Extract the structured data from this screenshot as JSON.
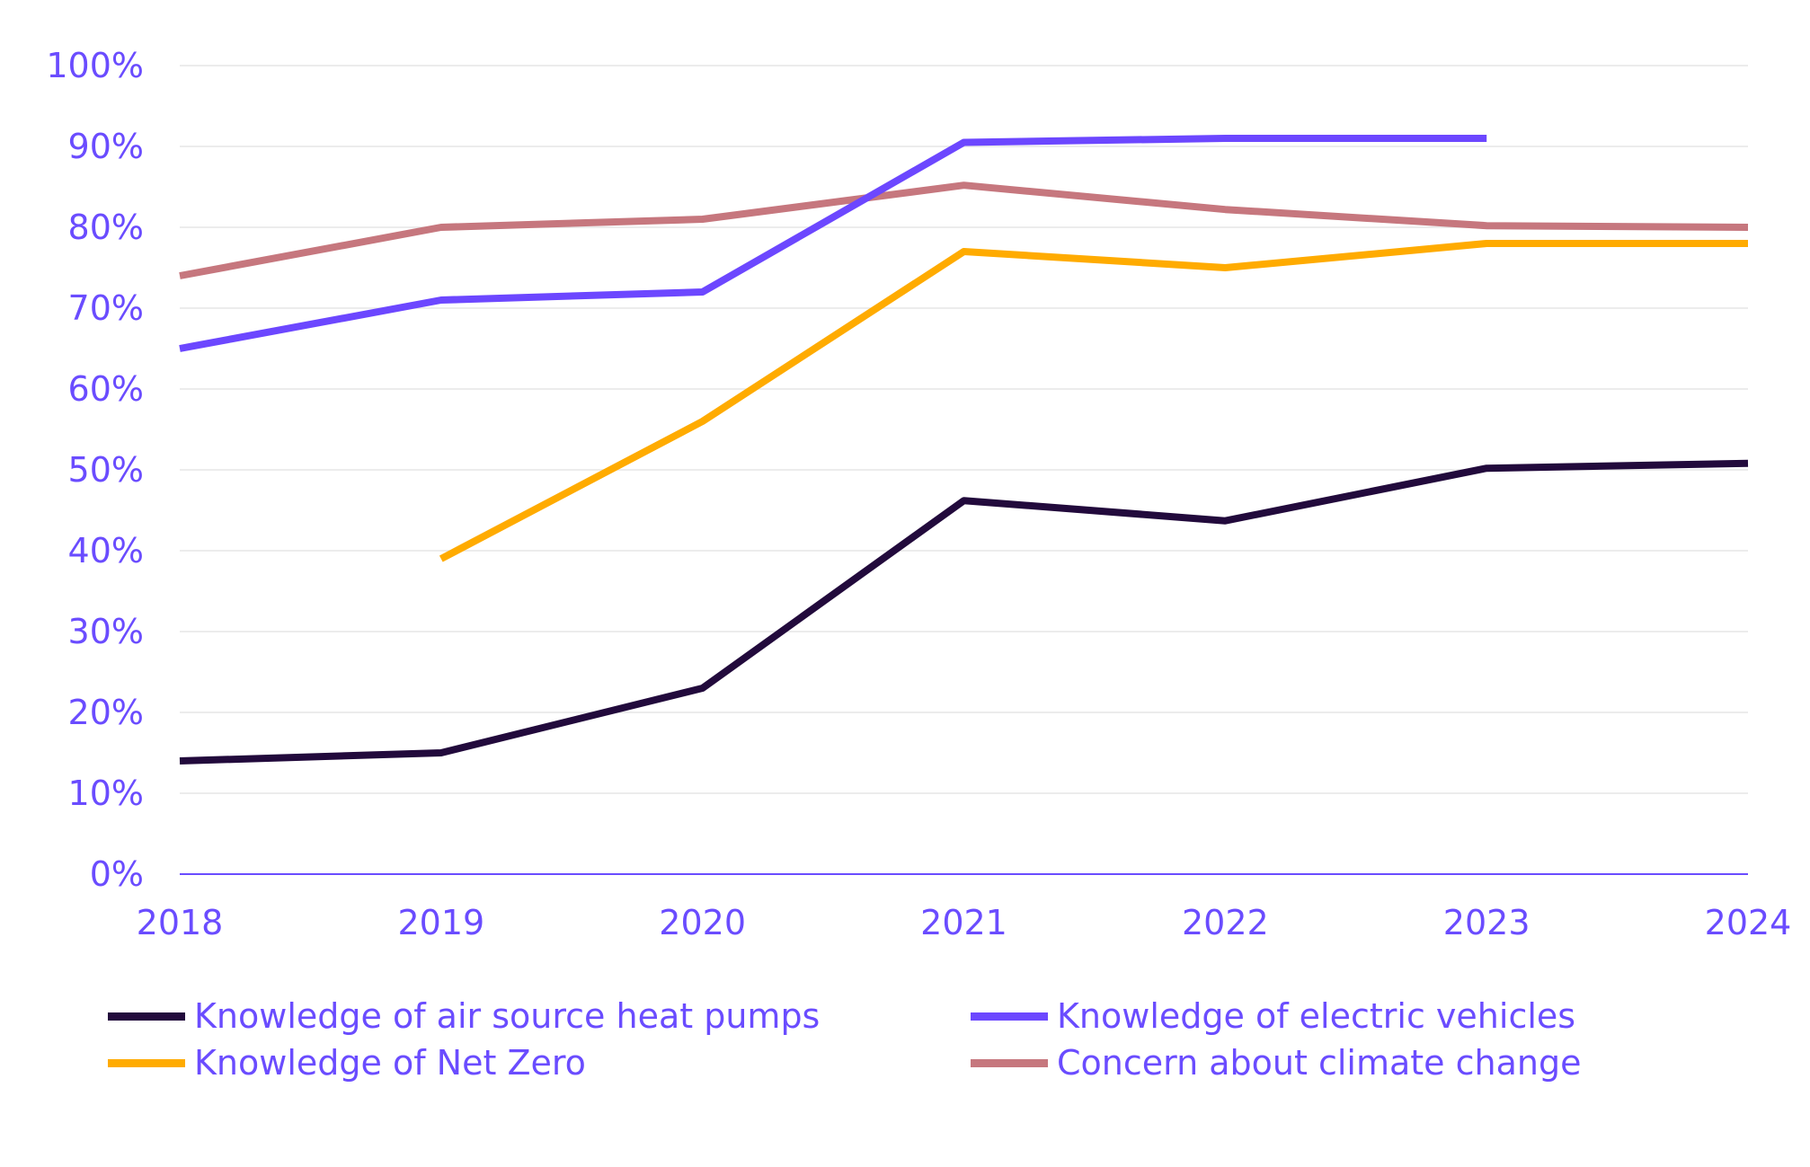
{
  "chart_data": {
    "type": "line",
    "title": "",
    "xlabel": "",
    "ylabel": "",
    "x": [
      2018,
      2019,
      2020,
      2021,
      2022,
      2023,
      2024
    ],
    "x_tick_labels": [
      "2018",
      "2019",
      "2020",
      "2021",
      "2022",
      "2023",
      "2024"
    ],
    "y_tick_labels": [
      "0%",
      "10%",
      "20%",
      "30%",
      "40%",
      "50%",
      "60%",
      "70%",
      "80%",
      "90%",
      "100%"
    ],
    "ylim": [
      0,
      100
    ],
    "y_unit": "%",
    "grid": "horizontal",
    "legend_position": "bottom",
    "series": [
      {
        "name": "Knowledge of air source heat pumps",
        "color": "#220a3c",
        "values": [
          14,
          15,
          23,
          46.2,
          43.7,
          50.2,
          50.8
        ]
      },
      {
        "name": "Knowledge of electric vehicles",
        "color": "#6c47ff",
        "values": [
          65,
          71,
          72,
          90.5,
          91,
          91,
          null
        ]
      },
      {
        "name": "Knowledge of Net Zero",
        "color": "#ffab00",
        "values": [
          null,
          39,
          56,
          77,
          75,
          78,
          78
        ]
      },
      {
        "name": "Concern about climate change",
        "color": "#c6777e",
        "values": [
          74,
          80,
          81,
          85.2,
          82.2,
          80.2,
          80
        ]
      }
    ]
  }
}
